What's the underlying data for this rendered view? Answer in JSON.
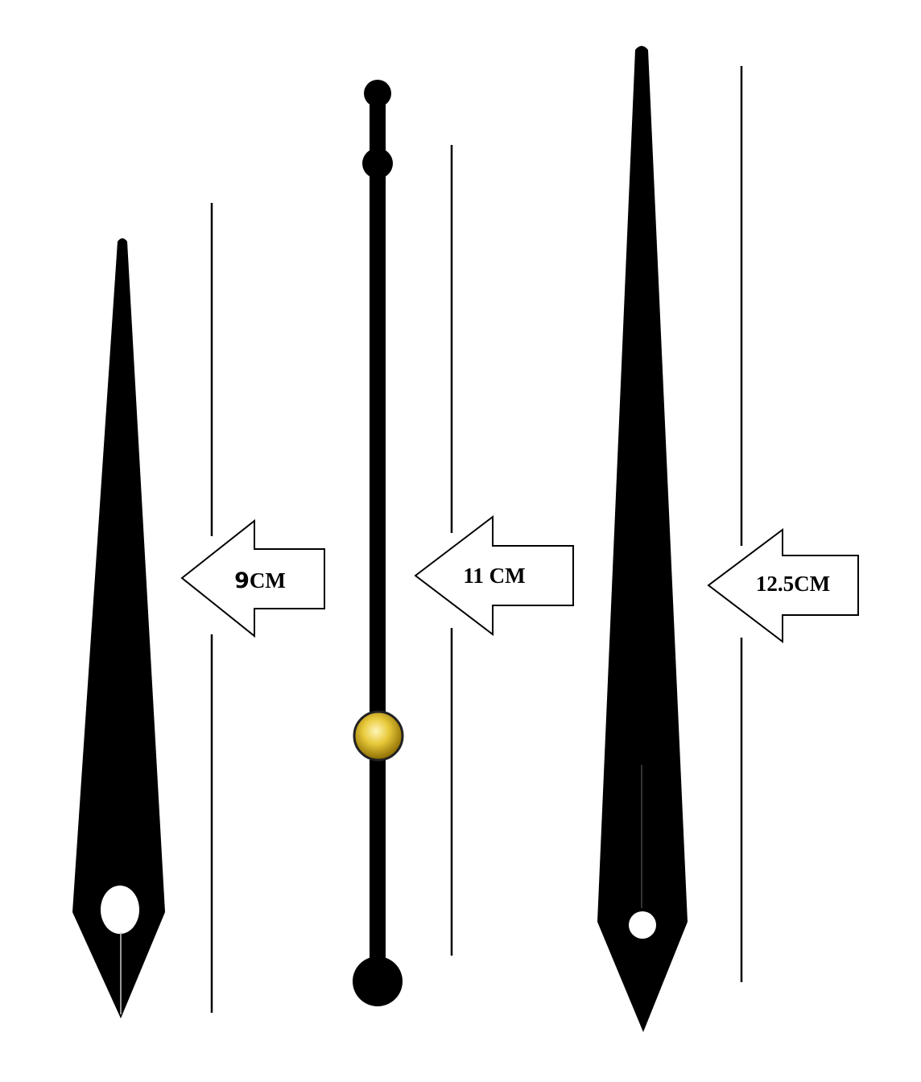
{
  "colors": {
    "hand": "#000000",
    "background": "#ffffff",
    "hub_light": "#f5e27a",
    "hub_mid": "#d4ae1e",
    "hub_dark": "#6b5200"
  },
  "hands": [
    {
      "name": "hour-hand",
      "length_label_number": "9",
      "length_label_unit": "CM"
    },
    {
      "name": "second-hand",
      "length_label": "11 CM"
    },
    {
      "name": "minute-hand",
      "length_label": "12.5CM"
    }
  ]
}
